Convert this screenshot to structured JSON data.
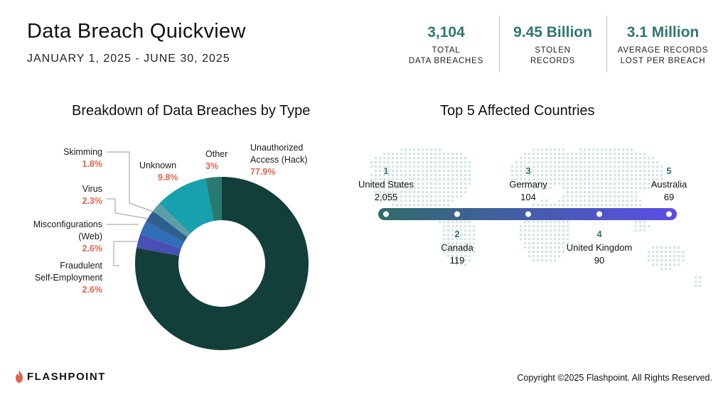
{
  "header": {
    "title": "Data Breach Quickview",
    "date_range": "JANUARY 1, 2025 - JUNE 30, 2025"
  },
  "stats": [
    {
      "value": "3,104",
      "label_line1": "TOTAL",
      "label_line2": "DATA BREACHES"
    },
    {
      "value": "9.45 Billion",
      "label_line1": "STOLEN",
      "label_line2": "RECORDS"
    },
    {
      "value": "3.1 Million",
      "label_line1": "AVERAGE RECORDS",
      "label_line2": "LOST PER BREACH"
    }
  ],
  "chart_data": [
    {
      "type": "pie",
      "title": "Breakdown of Data Breaches by Type",
      "slices": [
        {
          "label": "Unauthorized Access (Hack)",
          "value": 77.9,
          "display": "77.9%",
          "color": "#133f3a"
        },
        {
          "label": "Fraudulent Self-Employment",
          "value": 2.6,
          "display": "2.6%",
          "color": "#4a4fb3"
        },
        {
          "label": "Misconfigurations (Web)",
          "value": 2.6,
          "display": "2.6%",
          "color": "#2f6fb8"
        },
        {
          "label": "Virus",
          "value": 2.3,
          "display": "2.3%",
          "color": "#2f5f8f"
        },
        {
          "label": "Skimming",
          "value": 1.8,
          "display": "1.8%",
          "color": "#5f9ea6"
        },
        {
          "label": "Unknown",
          "value": 9.8,
          "display": "9.8%",
          "color": "#17a0ad"
        },
        {
          "label": "Other",
          "value": 3,
          "display": "3%",
          "color": "#2a7a72"
        }
      ]
    },
    {
      "type": "table",
      "title": "Top 5 Affected Countries",
      "rows": [
        {
          "rank": "1",
          "country": "United States",
          "value": "2,055"
        },
        {
          "rank": "2",
          "country": "Canada",
          "value": "119"
        },
        {
          "rank": "3",
          "country": "Germany",
          "value": "104"
        },
        {
          "rank": "4",
          "country": "United Kingdom",
          "value": "90"
        },
        {
          "rank": "5",
          "country": "Australia",
          "value": "69"
        }
      ]
    }
  ],
  "labels": {
    "hack_line1": "Unauthorized",
    "hack_line2": "Access (Hack)",
    "fraud_line1": "Fraudulent",
    "fraud_line2": "Self-Employment",
    "misconf_line1": "Misconfigurations",
    "misconf_line2": "(Web)"
  },
  "colors": {
    "accent": "#2f7770",
    "value_label": "#e0654a",
    "timeline_start": "#2f6b6a",
    "timeline_end": "#5b4ee8"
  },
  "footer": {
    "brand": "FLASHPOINT",
    "copyright": "Copyright ©2025 Flashpoint. All Rights Reserved."
  }
}
